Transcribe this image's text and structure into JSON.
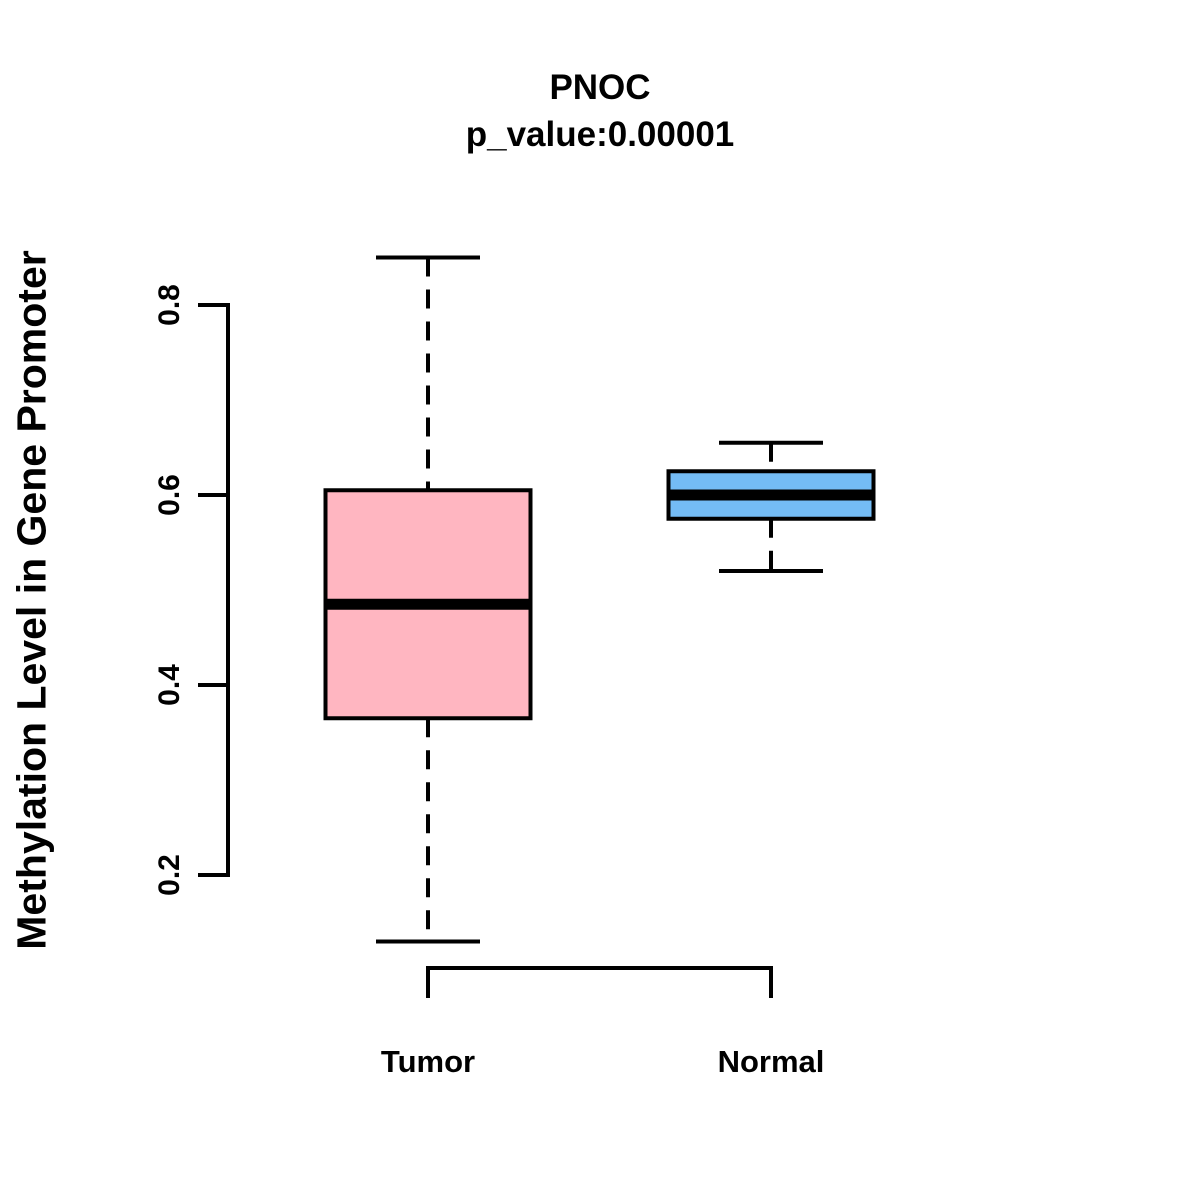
{
  "chart_data": {
    "type": "boxplot",
    "title": "PNOC",
    "subtitle": "p_value:0.00001",
    "p_value": "0.00001",
    "ylabel": "Methylation Level in Gene Promoter",
    "xlabel": "",
    "categories": [
      "Tumor",
      "Normal"
    ],
    "yticks": [
      0.2,
      0.4,
      0.6,
      0.8
    ],
    "ytick_labels": [
      "0.2",
      "0.4",
      "0.6",
      "0.8"
    ],
    "ylim_axis": [
      0.2,
      0.8
    ],
    "grid": "off",
    "legend": "none",
    "series": [
      {
        "label": "Tumor",
        "whisker_low": 0.13,
        "q1": 0.365,
        "median": 0.485,
        "q3": 0.605,
        "whisker_high": 0.85,
        "fill_color": "#FFB6C1"
      },
      {
        "label": "Normal",
        "whisker_low": 0.52,
        "q1": 0.575,
        "median": 0.6,
        "q3": 0.625,
        "whisker_high": 0.655,
        "fill_color": "#74BCF5"
      }
    ],
    "colors": {
      "line": "#000000",
      "text": "#000000",
      "background": "#FFFFFF",
      "tumor_fill": "#FFB6C1",
      "normal_fill": "#74BCF5"
    }
  }
}
